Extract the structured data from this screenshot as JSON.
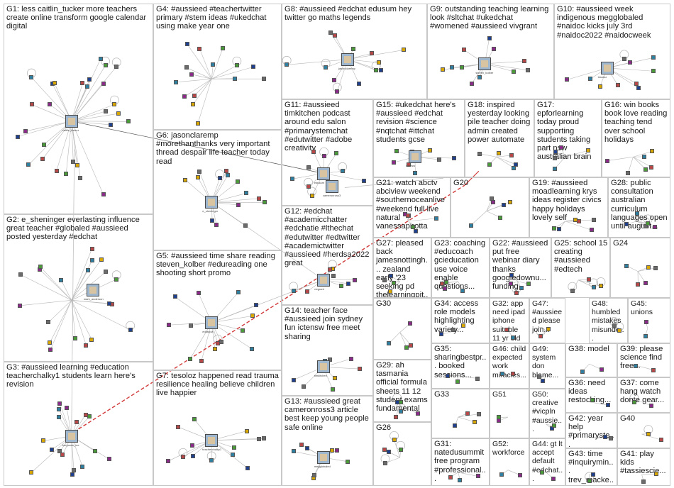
{
  "graph": {
    "colors": {
      "cluster_border": "#c8c8c8",
      "edge": "#b8b8b8",
      "edge_dark": "#555555",
      "highlight_edge": "#d23a3a",
      "node_palette": [
        "#1f3f8f",
        "#4a9a3a",
        "#8a2b8a",
        "#2f7fa0",
        "#b84848",
        "#d8a600",
        "#6a6a6a"
      ]
    },
    "clusters": [
      {
        "id": "G1",
        "label": "G1: less caitlin_tucker more teachers create online transform google calendar digital"
      },
      {
        "id": "G2",
        "label": "G2: e_sheninger everlasting influence great teacher #globaled #aussieed posted yesterday #edchat"
      },
      {
        "id": "G3",
        "label": "G3: #aussieed learning #education teacherchalky1 students learn here's revision"
      },
      {
        "id": "G4",
        "label": "G4: #aussieed #teachertwitter primary #stem ideas #ukedchat using make year one"
      },
      {
        "id": "G5",
        "label": "G5: #aussieed time share reading steven_kolber #edureading one shooting short promo"
      },
      {
        "id": "G6",
        "label": "G6: jasonclaremp #morethanthanks very important thread despair life teacher today read"
      },
      {
        "id": "G7",
        "label": "G7: tesoloz happened read trauma resilience healing believe children live happier"
      },
      {
        "id": "G8",
        "label": "G8: #aussieed #edchat edusum hey twitter go maths legends"
      },
      {
        "id": "G9",
        "label": "G9: outstanding teaching learning look #sltchat #ukedchat #womened #aussieed vivgrant"
      },
      {
        "id": "G10",
        "label": "G10: #aussieed week indigenous megglobaled #naidoc kicks july 3rd #naidoc2022 #naidocweek"
      },
      {
        "id": "G11",
        "label": "G11: #aussieed timkitchen podcast around edu salon #primarystemchat #edutwitter #adobe creativity"
      },
      {
        "id": "G12",
        "label": "G12: #edchat #academicchatter #edchatie #lthechat #edutwitter #edtwitter #academictwitter #aussieed #herdsa2022 great"
      },
      {
        "id": "G13",
        "label": "G13: #aussieed great cameronross3 article best keep young people safe online"
      },
      {
        "id": "G14",
        "label": "G14: teacher face #aussieed join sydney fun ictensw free meet sharing"
      },
      {
        "id": "G15",
        "label": "G15: #ukedchat here's #aussieed #edchat revision #science #nqtchat #ittchat students gcse"
      },
      {
        "id": "G16",
        "label": "G16: win books book love reading teaching tend over school holidays"
      },
      {
        "id": "G17",
        "label": "G17: epforlearning today proud supporting students taking part nsw australian brain"
      },
      {
        "id": "G18",
        "label": "G18: inspired yesterday looking pile teacher doing admin created power automate"
      },
      {
        "id": "G19",
        "label": "G19: #aussieed moadlearning krys ideas register civics happy holidays lovely self"
      },
      {
        "id": "G20",
        "label": "G20"
      },
      {
        "id": "G21",
        "label": "G21: watch abctv abciview weekend #southernoceanlive #weekend full live natural vanessapirotta"
      },
      {
        "id": "G22",
        "label": "G22: #aussieed put free webinar diary thanks googledownu... funding"
      },
      {
        "id": "G23",
        "label": "G23: coaching #educoach gcieducation use voice enable questions..."
      },
      {
        "id": "G24",
        "label": "G24"
      },
      {
        "id": "G25",
        "label": "G25: school 15 creating #aussieed #edtech"
      },
      {
        "id": "G26",
        "label": "G26"
      },
      {
        "id": "G27",
        "label": "G27: pleased back jamesnottingh... zealand early '23 seeking pd thelearningpit..."
      },
      {
        "id": "G28",
        "label": "G28: public consultation australian curriculum languages open until august..."
      },
      {
        "id": "G29",
        "label": "G29: ah tasmania official formula sheets 11 12 student exams fundamental"
      },
      {
        "id": "G30",
        "label": "G30"
      },
      {
        "id": "G31",
        "label": "G31: natedusummit free program #professional..."
      },
      {
        "id": "G32",
        "label": "G32: app need ipad iphone suitable 11 yr old boy use"
      },
      {
        "id": "G33",
        "label": "G33"
      },
      {
        "id": "G34",
        "label": "G34: access role models highlighting variety..."
      },
      {
        "id": "G35",
        "label": "G35: sharingbestpr... booked sessions..."
      },
      {
        "id": "G36",
        "label": "G36: need ideas restocking..."
      },
      {
        "id": "G37",
        "label": "G37: come hang watch donte gear..."
      },
      {
        "id": "G38",
        "label": "G38: model"
      },
      {
        "id": "G39",
        "label": "G39: please science find free..."
      },
      {
        "id": "G40",
        "label": "G40"
      },
      {
        "id": "G41",
        "label": "G41: play kids #tassiescie..."
      },
      {
        "id": "G42",
        "label": "G42: year help #primaryste..."
      },
      {
        "id": "G43",
        "label": "G43: time #inquirymin... trev_macke..."
      },
      {
        "id": "G44",
        "label": "G44: gt lt accept default #edchat..."
      },
      {
        "id": "G45",
        "label": "G45: unions"
      },
      {
        "id": "G46",
        "label": "G46: child expected work miracles..."
      },
      {
        "id": "G47",
        "label": "G47: #aussieed please join..."
      },
      {
        "id": "G48",
        "label": "G48: humbled mistakes misunde..."
      },
      {
        "id": "G49",
        "label": "G49: system don blame..."
      },
      {
        "id": "G50",
        "label": "G50: creative #vicpln #aussie..."
      },
      {
        "id": "G51",
        "label": "G51"
      },
      {
        "id": "G52",
        "label": "G52: workforce"
      }
    ],
    "picture_nodes": [
      {
        "label": "caitlin_tucker"
      },
      {
        "label": "mark_anderson"
      },
      {
        "label": "benjamin_lee"
      },
      {
        "label": "e_sheninger"
      },
      {
        "label": "edutopia"
      },
      {
        "label": "teacherchalky1"
      },
      {
        "label": "jasonclaremp"
      },
      {
        "label": "steven_kolber"
      },
      {
        "label": "tesoloz"
      },
      {
        "label": "edusum"
      },
      {
        "label": "vivgrant"
      },
      {
        "label": "megglobaled"
      },
      {
        "label": "timkitchen"
      },
      {
        "label": "cameronross3"
      },
      {
        "label": "ictensw"
      }
    ]
  }
}
